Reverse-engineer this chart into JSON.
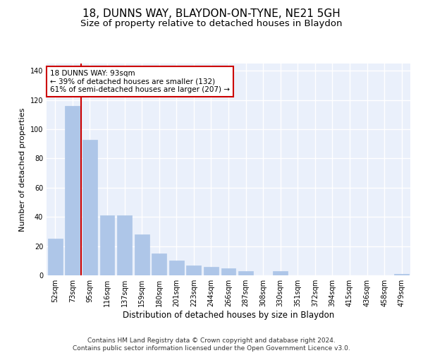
{
  "title": "18, DUNNS WAY, BLAYDON-ON-TYNE, NE21 5GH",
  "subtitle": "Size of property relative to detached houses in Blaydon",
  "xlabel": "Distribution of detached houses by size in Blaydon",
  "ylabel": "Number of detached properties",
  "categories": [
    "52sqm",
    "73sqm",
    "95sqm",
    "116sqm",
    "137sqm",
    "159sqm",
    "180sqm",
    "201sqm",
    "223sqm",
    "244sqm",
    "266sqm",
    "287sqm",
    "308sqm",
    "330sqm",
    "351sqm",
    "372sqm",
    "394sqm",
    "415sqm",
    "436sqm",
    "458sqm",
    "479sqm"
  ],
  "values": [
    25,
    116,
    93,
    41,
    41,
    28,
    15,
    10,
    7,
    6,
    5,
    3,
    0,
    3,
    0,
    0,
    0,
    0,
    0,
    0,
    1
  ],
  "bar_color": "#aec6e8",
  "bar_edge_color": "#aec6e8",
  "vline_color": "#cc0000",
  "ylim": [
    0,
    145
  ],
  "yticks": [
    0,
    20,
    40,
    60,
    80,
    100,
    120,
    140
  ],
  "annotation_text": "18 DUNNS WAY: 93sqm\n← 39% of detached houses are smaller (132)\n61% of semi-detached houses are larger (207) →",
  "annotation_box_color": "#ffffff",
  "annotation_box_edge_color": "#cc0000",
  "footer_line1": "Contains HM Land Registry data © Crown copyright and database right 2024.",
  "footer_line2": "Contains public sector information licensed under the Open Government Licence v3.0.",
  "background_color": "#eaf0fb",
  "grid_color": "#ffffff",
  "title_fontsize": 11,
  "subtitle_fontsize": 9.5,
  "xlabel_fontsize": 8.5,
  "ylabel_fontsize": 8,
  "tick_fontsize": 7,
  "footer_fontsize": 6.5,
  "ann_fontsize": 7.5
}
